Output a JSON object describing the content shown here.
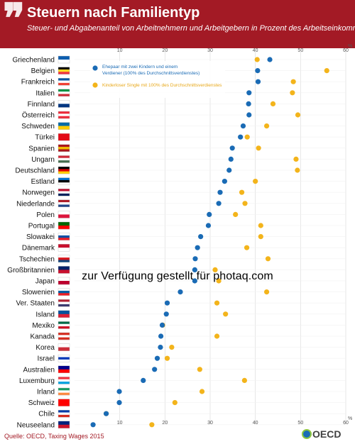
{
  "header": {
    "title": "Steuern nach Familientyp",
    "subtitle": "Steuer- und Abgabenanteil von Arbeitnehmern und Arbeitgebern in Prozent des Arbeitseinkommens",
    "background_color": "#a31a25"
  },
  "watermark": "zur Verfügung gestellt für photaq.com",
  "source": "Quelle: OECD, Taxing Wages 2015",
  "logo": "OECD",
  "colors": {
    "blue": "#1a6bb5",
    "gold": "#f3b41b",
    "label_red": "#a31a25"
  },
  "chart_data": {
    "type": "scatter",
    "xlim": [
      0,
      60
    ],
    "x_ticks": [
      "10",
      "20",
      "30",
      "40",
      "50",
      "60"
    ],
    "unit": "%",
    "grid": true,
    "legend_position": "top-left",
    "categories": [
      "Griechenland",
      "Belgien",
      "Frankreich",
      "Italien",
      "Finnland",
      "Österreich",
      "Schweden",
      "Türkei",
      "Spanien",
      "Ungarn",
      "Deutschland",
      "Estland",
      "Norwegen",
      "Niederlande",
      "Polen",
      "Portugal",
      "Slowakei",
      "Dänemark",
      "Tschechien",
      "Großbritannien",
      "Japan",
      "Slowenien",
      "Ver. Staaten",
      "Island",
      "Mexiko",
      "Kanada",
      "Korea",
      "Israel",
      "Australien",
      "Luxemburg",
      "Irland",
      "Schweiz",
      "Chile",
      "Neuseeland"
    ],
    "series": [
      {
        "name": "Ehepaar mit zwei Kindern und einem Verdiener (100% des Durchschnittsverdienstes)",
        "color": "#1a6bb5",
        "values": [
          43.2,
          40.5,
          40.6,
          38.6,
          38.5,
          38.6,
          37.3,
          36.7,
          34.9,
          34.6,
          34.2,
          33.2,
          32.2,
          31.9,
          29.8,
          29.6,
          27.9,
          27.2,
          26.7,
          26.6,
          26.6,
          23.4,
          20.5,
          20.3,
          19.4,
          19.1,
          19.0,
          18.3,
          17.7,
          15.2,
          9.9,
          9.9,
          7.0,
          4.1
        ]
      },
      {
        "name": "Kinderloser Single mit 100% des Durchschnittsverdienstes",
        "color": "#f3b41b",
        "values": [
          40.4,
          55.8,
          48.4,
          48.2,
          43.9,
          49.4,
          42.5,
          38.2,
          40.7,
          49.0,
          49.3,
          40.0,
          37.0,
          37.7,
          35.6,
          41.2,
          41.2,
          38.1,
          42.8,
          31.1,
          31.9,
          42.5,
          31.5,
          33.4,
          19.5,
          31.5,
          21.5,
          20.5,
          27.7,
          37.6,
          28.2,
          22.2,
          7.0,
          17.1
        ]
      }
    ]
  }
}
